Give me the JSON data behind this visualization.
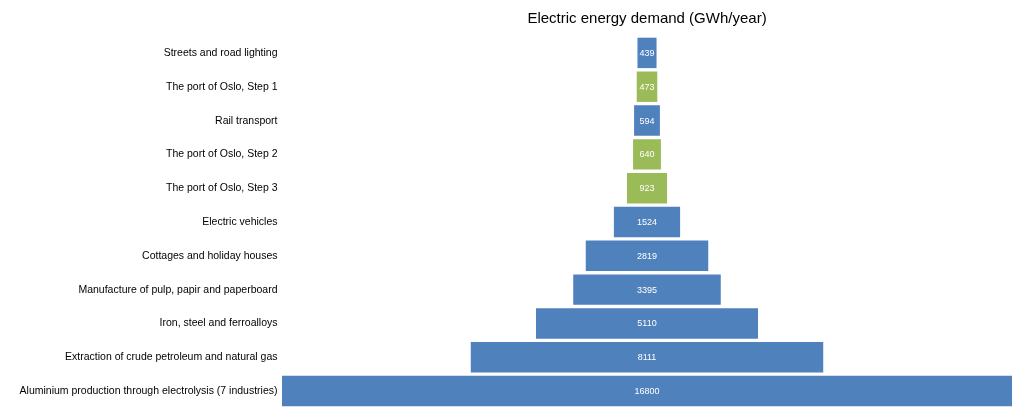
{
  "chart_data": {
    "type": "other",
    "title": "Electric energy demand (GWh/year)",
    "categories": [
      "Streets and road lighting",
      "The port of Oslo, Step 1",
      "Rail transport",
      "The port of Oslo, Step 2",
      "The port of Oslo, Step 3",
      "Electric vehicles",
      "Cottages and holiday houses",
      "Manufacture of pulp, papir and paperboard",
      "Iron, steel and ferroalloys",
      "Extraction of crude petroleum and natural gas",
      "Aluminium production through electrolysis (7 industries)"
    ],
    "values": [
      439,
      473,
      594,
      640,
      923,
      1524,
      2819,
      3395,
      5110,
      8111,
      16800
    ],
    "colors": [
      "#4f81bd",
      "#9bbb59",
      "#4f81bd",
      "#9bbb59",
      "#9bbb59",
      "#4f81bd",
      "#4f81bd",
      "#4f81bd",
      "#4f81bd",
      "#4f81bd",
      "#4f81bd"
    ],
    "data_labels": true
  }
}
